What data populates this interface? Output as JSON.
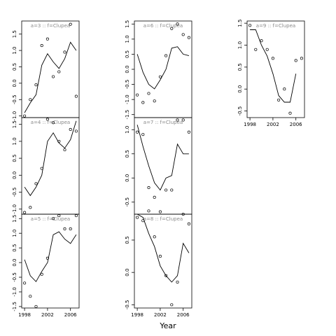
{
  "figure": {
    "xlabel": "Year"
  },
  "chart_data": [
    {
      "type": "line",
      "title": "a=3 :: f=Clupea",
      "xlim": [
        1997.5,
        2007.5
      ],
      "ylim": [
        -1.05,
        1.9
      ],
      "yticks": [
        -1.0,
        -0.5,
        0.0,
        0.5,
        1.0,
        1.5
      ],
      "ytick_labels": [
        "-1.0",
        "-0.5",
        "0.0",
        "0.5",
        "1.0",
        "1.5"
      ],
      "series": [
        {
          "values": [
            {
              "x": 1998,
              "y": -0.9
            },
            {
              "x": 1999,
              "y": -0.6
            },
            {
              "x": 2000,
              "y": -0.35
            },
            {
              "x": 2001,
              "y": 0.55
            },
            {
              "x": 2002,
              "y": 0.9
            },
            {
              "x": 2003,
              "y": 0.65
            },
            {
              "x": 2004,
              "y": 0.45
            },
            {
              "x": 2005,
              "y": 0.75
            },
            {
              "x": 2006,
              "y": 1.25
            },
            {
              "x": 2007,
              "y": 1.0
            }
          ]
        },
        {
          "style": "points",
          "values": [
            {
              "x": 1998,
              "y": -1.0
            },
            {
              "x": 1999,
              "y": -0.5
            },
            {
              "x": 2000,
              "y": -0.05
            },
            {
              "x": 2001,
              "y": 1.15
            },
            {
              "x": 2002,
              "y": 1.35
            },
            {
              "x": 2003,
              "y": 0.2
            },
            {
              "x": 2004,
              "y": 0.35
            },
            {
              "x": 2005,
              "y": 0.95
            },
            {
              "x": 2006,
              "y": 1.8
            },
            {
              "x": 2007,
              "y": -0.4
            }
          ]
        }
      ]
    },
    {
      "type": "line",
      "title": "a=6 :: f=Clupea",
      "xlim": [
        1997.5,
        2007.5
      ],
      "ylim": [
        -1.6,
        1.6
      ],
      "yticks": [
        -1.5,
        -1.0,
        -0.5,
        0.0,
        0.5,
        1.0,
        1.5
      ],
      "ytick_labels": [
        "-1.5",
        "-1.0",
        "-0.5",
        "0.0",
        "0.5",
        "1.0",
        "1.5"
      ],
      "series": [
        {
          "values": [
            {
              "x": 1998,
              "y": 0.5
            },
            {
              "x": 1999,
              "y": -0.1
            },
            {
              "x": 2000,
              "y": -0.5
            },
            {
              "x": 2001,
              "y": -0.65
            },
            {
              "x": 2002,
              "y": -0.35
            },
            {
              "x": 2003,
              "y": 0.0
            },
            {
              "x": 2004,
              "y": 0.7
            },
            {
              "x": 2005,
              "y": 0.75
            },
            {
              "x": 2006,
              "y": 0.5
            },
            {
              "x": 2007,
              "y": 0.45
            }
          ]
        },
        {
          "style": "points",
          "values": [
            {
              "x": 1998,
              "y": -0.85
            },
            {
              "x": 1999,
              "y": -1.1
            },
            {
              "x": 2000,
              "y": -0.8
            },
            {
              "x": 2001,
              "y": -1.05
            },
            {
              "x": 2002,
              "y": -0.25
            },
            {
              "x": 2003,
              "y": 0.45
            },
            {
              "x": 2004,
              "y": 1.35
            },
            {
              "x": 2005,
              "y": 1.5
            },
            {
              "x": 2006,
              "y": 1.15
            },
            {
              "x": 2007,
              "y": 1.05
            }
          ]
        }
      ]
    },
    {
      "type": "line",
      "title": "a=9 :: f=Clupea",
      "xlim": [
        1997.5,
        2007.5
      ],
      "ylim": [
        -0.65,
        1.55
      ],
      "yticks": [
        -0.5,
        0.0,
        0.5,
        1.0,
        1.5
      ],
      "ytick_labels": [
        "-0.5",
        "0.0",
        "0.5",
        "1.0",
        "1.5"
      ],
      "xticks": [
        1998,
        2002,
        2006
      ],
      "xtick_labels": [
        "1998",
        "2002",
        "2006"
      ],
      "series": [
        {
          "values": [
            {
              "x": 1998,
              "y": 1.35
            },
            {
              "x": 1999,
              "y": 1.35
            },
            {
              "x": 2000,
              "y": 1.0
            },
            {
              "x": 2001,
              "y": 0.75
            },
            {
              "x": 2002,
              "y": 0.35
            },
            {
              "x": 2003,
              "y": -0.15
            },
            {
              "x": 2004,
              "y": -0.3
            },
            {
              "x": 2005,
              "y": -0.3
            },
            {
              "x": 2006,
              "y": 0.35
            }
          ]
        },
        {
          "style": "points",
          "values": [
            {
              "x": 1998,
              "y": 1.45
            },
            {
              "x": 1999,
              "y": 0.9
            },
            {
              "x": 2000,
              "y": 1.1
            },
            {
              "x": 2001,
              "y": 0.9
            },
            {
              "x": 2002,
              "y": 0.7
            },
            {
              "x": 2003,
              "y": -0.25
            },
            {
              "x": 2004,
              "y": 0.0
            },
            {
              "x": 2005,
              "y": -0.55
            },
            {
              "x": 2006,
              "y": 0.65
            },
            {
              "x": 2007,
              "y": 0.7
            }
          ]
        }
      ]
    },
    {
      "type": "line",
      "title": "a=4 :: f=Clupea",
      "xlim": [
        1997.5,
        2007.5
      ],
      "ylim": [
        -1.15,
        1.7
      ],
      "yticks": [
        -1.0,
        -0.5,
        0.0,
        0.5,
        1.0,
        1.5
      ],
      "ytick_labels": [
        "-1.0",
        "-0.5",
        "0.0",
        "0.5",
        "1.0",
        "1.5"
      ],
      "series": [
        {
          "values": [
            {
              "x": 1998,
              "y": -0.35
            },
            {
              "x": 1999,
              "y": -0.6
            },
            {
              "x": 2000,
              "y": -0.35
            },
            {
              "x": 2001,
              "y": 0.0
            },
            {
              "x": 2002,
              "y": 1.0
            },
            {
              "x": 2003,
              "y": 1.25
            },
            {
              "x": 2004,
              "y": 0.95
            },
            {
              "x": 2005,
              "y": 0.8
            },
            {
              "x": 2006,
              "y": 1.05
            },
            {
              "x": 2007,
              "y": 1.6
            }
          ]
        },
        {
          "style": "points",
          "values": [
            {
              "x": 1998,
              "y": -1.1
            },
            {
              "x": 1999,
              "y": -0.95
            },
            {
              "x": 2000,
              "y": -0.25
            },
            {
              "x": 2001,
              "y": 0.2
            },
            {
              "x": 2002,
              "y": 1.65
            },
            {
              "x": 2003,
              "y": 1.55
            },
            {
              "x": 2004,
              "y": 1.0
            },
            {
              "x": 2005,
              "y": 0.75
            },
            {
              "x": 2006,
              "y": 1.35
            },
            {
              "x": 2007,
              "y": 1.3
            }
          ]
        }
      ]
    },
    {
      "type": "line",
      "title": "a=7 :: f=Clupea",
      "xlim": [
        1997.5,
        2007.5
      ],
      "ylim": [
        -0.75,
        1.25
      ],
      "yticks": [
        -0.5,
        0.0,
        0.5,
        1.0
      ],
      "ytick_labels": [
        "-0.5",
        "0.0",
        "0.5",
        "1.0"
      ],
      "series": [
        {
          "values": [
            {
              "x": 1998,
              "y": 1.1
            },
            {
              "x": 1999,
              "y": 0.65
            },
            {
              "x": 2000,
              "y": 0.25
            },
            {
              "x": 2001,
              "y": -0.1
            },
            {
              "x": 2002,
              "y": -0.25
            },
            {
              "x": 2003,
              "y": 0.0
            },
            {
              "x": 2004,
              "y": 0.05
            },
            {
              "x": 2005,
              "y": 0.7
            },
            {
              "x": 2006,
              "y": 0.5
            },
            {
              "x": 2007,
              "y": 0.5
            }
          ]
        },
        {
          "style": "points",
          "values": [
            {
              "x": 1998,
              "y": 0.95
            },
            {
              "x": 1999,
              "y": 0.9
            },
            {
              "x": 2000,
              "y": -0.2
            },
            {
              "x": 2001,
              "y": -0.4
            },
            {
              "x": 2002,
              "y": -0.7
            },
            {
              "x": 2003,
              "y": -0.25
            },
            {
              "x": 2004,
              "y": -0.25
            },
            {
              "x": 2005,
              "y": 1.2
            },
            {
              "x": 2006,
              "y": 1.2
            },
            {
              "x": 2007,
              "y": 0.95
            }
          ]
        }
      ]
    },
    {
      "type": "line",
      "title": "a=5 :: f=Clupea",
      "xlim": [
        1997.5,
        2007.5
      ],
      "ylim": [
        -1.55,
        1.65
      ],
      "yticks": [
        -1.5,
        -1.0,
        -0.5,
        0.0,
        0.5,
        1.0,
        1.5
      ],
      "ytick_labels": [
        "-1.5",
        "-1.0",
        "-0.5",
        "0.0",
        "0.5",
        "1.0",
        "1.5"
      ],
      "xticks": [
        1998,
        2002,
        2006
      ],
      "xtick_labels": [
        "1998",
        "2002",
        "2006"
      ],
      "series": [
        {
          "values": [
            {
              "x": 1998,
              "y": 0.1
            },
            {
              "x": 1999,
              "y": -0.45
            },
            {
              "x": 2000,
              "y": -0.65
            },
            {
              "x": 2001,
              "y": -0.3
            },
            {
              "x": 2002,
              "y": 0.0
            },
            {
              "x": 2003,
              "y": 0.95
            },
            {
              "x": 2004,
              "y": 1.05
            },
            {
              "x": 2005,
              "y": 0.8
            },
            {
              "x": 2006,
              "y": 0.65
            },
            {
              "x": 2007,
              "y": 0.95
            }
          ]
        },
        {
          "style": "points",
          "values": [
            {
              "x": 1998,
              "y": -0.7
            },
            {
              "x": 1999,
              "y": -1.15
            },
            {
              "x": 2000,
              "y": -1.5
            },
            {
              "x": 2001,
              "y": -0.4
            },
            {
              "x": 2002,
              "y": 0.15
            },
            {
              "x": 2003,
              "y": 1.5
            },
            {
              "x": 2004,
              "y": 1.6
            },
            {
              "x": 2005,
              "y": 1.15
            },
            {
              "x": 2006,
              "y": 1.15
            },
            {
              "x": 2007,
              "y": 1.6
            }
          ]
        }
      ]
    },
    {
      "type": "line",
      "title": "a=8 :: f=Clupea",
      "xlim": [
        1997.5,
        2007.5
      ],
      "ylim": [
        -0.55,
        0.9
      ],
      "yticks": [
        -0.5,
        0.0,
        0.5
      ],
      "ytick_labels": [
        "-0.5",
        "0.0",
        "0.5"
      ],
      "xticks": [
        1998,
        2002,
        2006
      ],
      "xtick_labels": [
        "1998",
        "2002",
        "2006"
      ],
      "series": [
        {
          "values": [
            {
              "x": 1998,
              "y": 1.0
            },
            {
              "x": 1999,
              "y": 0.85
            },
            {
              "x": 2000,
              "y": 0.6
            },
            {
              "x": 2001,
              "y": 0.4
            },
            {
              "x": 2002,
              "y": 0.1
            },
            {
              "x": 2003,
              "y": -0.05
            },
            {
              "x": 2004,
              "y": -0.15
            },
            {
              "x": 2005,
              "y": -0.05
            },
            {
              "x": 2006,
              "y": 0.45
            },
            {
              "x": 2007,
              "y": 0.3
            }
          ]
        },
        {
          "style": "points",
          "values": [
            {
              "x": 1998,
              "y": 0.85
            },
            {
              "x": 1999,
              "y": 0.8
            },
            {
              "x": 2000,
              "y": 0.95
            },
            {
              "x": 2001,
              "y": 0.55
            },
            {
              "x": 2002,
              "y": 0.25
            },
            {
              "x": 2003,
              "y": -0.05
            },
            {
              "x": 2004,
              "y": -0.5
            },
            {
              "x": 2005,
              "y": -0.15
            },
            {
              "x": 2006,
              "y": 0.9
            },
            {
              "x": 2007,
              "y": 0.75
            }
          ]
        }
      ]
    }
  ]
}
